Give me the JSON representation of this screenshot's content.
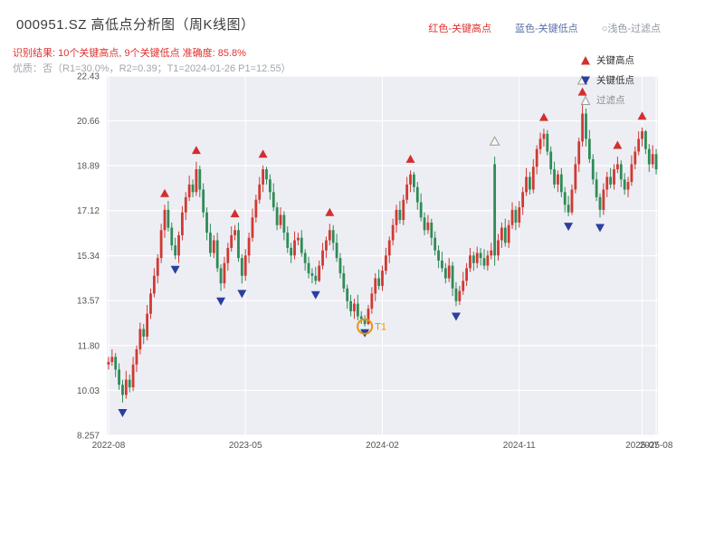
{
  "header": {
    "title": "000951.SZ 高低点分析图（周K线图）",
    "recognition_result": "识别结果: 10个关键高点, 9个关键低点  准确度: 85.8%",
    "quality_note": "优质：否（R1=30.0%，R2=0.39；T1=2024-01-26 P1=12.55）",
    "legend": {
      "high": "红色-关键高点",
      "low": "蓝色-关键低点",
      "filter": "○浅色-过滤点"
    }
  },
  "chart_data": {
    "type": "candlestick",
    "symbol": "000951.SZ",
    "period": "周K线",
    "title": "000951.SZ 高低点分析图（周K线图）",
    "x_tick_labels": [
      "2022-08",
      "2023-05",
      "2024-02",
      "2024-11",
      "2025-07",
      "2025-08"
    ],
    "x_tick_weeks": [
      0,
      39,
      78,
      117,
      152,
      156
    ],
    "y_tick_labels": [
      "8.257",
      "10.03",
      "11.80",
      "13.57",
      "15.34",
      "17.12",
      "18.89",
      "20.66",
      "22.43"
    ],
    "y_ticks": [
      8.257,
      10.03,
      11.8,
      13.57,
      15.34,
      17.12,
      18.89,
      20.66,
      22.43
    ],
    "ylim": [
      8.257,
      22.43
    ],
    "grid": true,
    "legend_position": "upper-right",
    "colors": {
      "up": "#cf3a33",
      "down": "#2f8b57",
      "key_high": "#d32f2f",
      "key_low": "#2b3f9e",
      "filter": "#f8f8f0",
      "filter_edge": "#9a9a9a",
      "annotation": "#e8940a",
      "panel": "#edeef4",
      "grid": "#ffffff",
      "tick_text": "#555555"
    },
    "legend": [
      {
        "label": "关键高点",
        "marker": "red-up-triangle"
      },
      {
        "label": "关键低点",
        "marker": "blue-down-triangle"
      },
      {
        "label": "过滤点",
        "marker": "light-up-triangle"
      }
    ],
    "candles": [
      [
        11.05,
        11.35,
        10.85,
        11.15
      ],
      [
        11.15,
        11.65,
        11.0,
        11.35
      ],
      [
        11.35,
        11.5,
        10.55,
        10.85
      ],
      [
        10.85,
        11.1,
        10.05,
        10.25
      ],
      [
        10.25,
        10.45,
        9.55,
        9.85
      ],
      [
        9.85,
        10.8,
        9.7,
        10.45
      ],
      [
        10.45,
        10.65,
        9.95,
        10.15
      ],
      [
        10.15,
        11.35,
        10.0,
        11.05
      ],
      [
        11.05,
        11.8,
        10.75,
        11.65
      ],
      [
        11.65,
        12.7,
        11.45,
        12.45
      ],
      [
        12.45,
        12.65,
        11.85,
        12.15
      ],
      [
        12.15,
        13.4,
        12.0,
        13.05
      ],
      [
        13.05,
        14.05,
        12.85,
        13.85
      ],
      [
        13.85,
        14.85,
        13.7,
        14.55
      ],
      [
        14.55,
        15.4,
        14.25,
        15.25
      ],
      [
        15.25,
        16.6,
        15.05,
        16.35
      ],
      [
        16.35,
        17.35,
        16.05,
        17.15
      ],
      [
        17.15,
        17.5,
        16.3,
        16.45
      ],
      [
        16.45,
        16.65,
        15.55,
        15.75
      ],
      [
        15.75,
        16.05,
        15.2,
        15.35
      ],
      [
        15.35,
        16.3,
        15.05,
        16.15
      ],
      [
        16.15,
        17.3,
        15.95,
        17.05
      ],
      [
        17.05,
        17.85,
        16.75,
        17.65
      ],
      [
        17.65,
        18.5,
        17.5,
        18.15
      ],
      [
        18.15,
        18.35,
        17.65,
        17.85
      ],
      [
        17.85,
        19.05,
        17.7,
        18.75
      ],
      [
        18.75,
        18.9,
        17.65,
        17.95
      ],
      [
        17.95,
        18.2,
        16.85,
        17.05
      ],
      [
        17.05,
        17.25,
        15.95,
        16.25
      ],
      [
        16.25,
        16.6,
        15.3,
        15.45
      ],
      [
        15.45,
        16.15,
        15.25,
        15.95
      ],
      [
        15.95,
        16.25,
        14.7,
        14.85
      ],
      [
        14.85,
        15.0,
        13.95,
        14.25
      ],
      [
        14.25,
        15.3,
        14.05,
        15.05
      ],
      [
        15.05,
        15.85,
        14.75,
        15.65
      ],
      [
        15.65,
        16.5,
        15.5,
        16.15
      ],
      [
        16.15,
        16.55,
        15.95,
        16.35
      ],
      [
        16.35,
        16.65,
        15.1,
        15.25
      ],
      [
        15.25,
        15.4,
        14.25,
        14.55
      ],
      [
        14.55,
        15.6,
        14.35,
        15.35
      ],
      [
        15.35,
        16.25,
        15.05,
        16.05
      ],
      [
        16.05,
        17.2,
        15.9,
        16.85
      ],
      [
        16.85,
        17.75,
        16.65,
        17.55
      ],
      [
        17.55,
        18.45,
        17.4,
        18.15
      ],
      [
        18.15,
        18.9,
        17.85,
        18.75
      ],
      [
        18.75,
        18.85,
        18.15,
        18.35
      ],
      [
        18.35,
        18.55,
        17.55,
        17.85
      ],
      [
        17.85,
        18.2,
        17.1,
        17.25
      ],
      [
        17.25,
        17.45,
        16.35,
        16.55
      ],
      [
        16.55,
        17.25,
        16.4,
        16.95
      ],
      [
        16.95,
        17.1,
        15.95,
        16.25
      ],
      [
        16.25,
        16.5,
        15.45,
        15.65
      ],
      [
        15.65,
        15.85,
        15.05,
        15.35
      ],
      [
        15.35,
        16.3,
        15.2,
        15.95
      ],
      [
        15.95,
        16.25,
        15.75,
        16.05
      ],
      [
        16.05,
        16.35,
        15.3,
        15.45
      ],
      [
        15.45,
        15.6,
        14.75,
        15.05
      ],
      [
        15.05,
        15.3,
        14.45,
        14.65
      ],
      [
        14.65,
        14.85,
        14.25,
        14.55
      ],
      [
        14.55,
        14.9,
        14.2,
        14.35
      ],
      [
        14.35,
        15.15,
        14.3,
        14.95
      ],
      [
        14.95,
        15.85,
        14.8,
        15.55
      ],
      [
        15.55,
        16.1,
        15.25,
        15.95
      ],
      [
        15.95,
        16.6,
        15.75,
        16.35
      ],
      [
        16.35,
        16.55,
        15.55,
        15.85
      ],
      [
        15.85,
        16.2,
        15.1,
        15.25
      ],
      [
        15.25,
        15.45,
        14.45,
        14.65
      ],
      [
        14.65,
        14.95,
        13.9,
        14.05
      ],
      [
        14.05,
        14.2,
        13.25,
        13.55
      ],
      [
        13.55,
        13.8,
        12.95,
        13.15
      ],
      [
        13.15,
        13.65,
        12.85,
        13.45
      ],
      [
        13.45,
        13.8,
        12.8,
        12.95
      ],
      [
        12.95,
        13.15,
        12.65,
        12.85
      ],
      [
        12.85,
        13.0,
        12.55,
        12.65
      ],
      [
        12.65,
        13.4,
        12.6,
        13.25
      ],
      [
        13.25,
        14.1,
        13.05,
        13.85
      ],
      [
        13.85,
        14.65,
        13.55,
        14.45
      ],
      [
        14.45,
        14.8,
        14.0,
        14.15
      ],
      [
        14.15,
        14.95,
        13.95,
        14.75
      ],
      [
        14.75,
        15.65,
        14.6,
        15.35
      ],
      [
        15.35,
        16.1,
        15.05,
        15.95
      ],
      [
        15.95,
        16.8,
        15.75,
        16.55
      ],
      [
        16.55,
        17.35,
        16.25,
        17.15
      ],
      [
        17.15,
        17.5,
        16.6,
        16.75
      ],
      [
        16.75,
        17.75,
        16.55,
        17.55
      ],
      [
        17.55,
        18.45,
        17.4,
        18.15
      ],
      [
        18.15,
        18.7,
        17.85,
        18.55
      ],
      [
        18.55,
        18.65,
        17.85,
        18.05
      ],
      [
        18.05,
        18.25,
        17.15,
        17.45
      ],
      [
        17.45,
        17.8,
        16.7,
        16.85
      ],
      [
        16.85,
        17.05,
        16.15,
        16.35
      ],
      [
        16.35,
        16.95,
        16.2,
        16.65
      ],
      [
        16.65,
        16.8,
        15.75,
        16.05
      ],
      [
        16.05,
        16.3,
        15.35,
        15.55
      ],
      [
        15.55,
        15.75,
        14.85,
        15.15
      ],
      [
        15.15,
        15.5,
        14.7,
        14.85
      ],
      [
        14.85,
        15.05,
        14.25,
        14.45
      ],
      [
        14.45,
        15.25,
        14.3,
        14.95
      ],
      [
        14.95,
        15.1,
        13.75,
        14.05
      ],
      [
        14.05,
        14.3,
        13.35,
        13.55
      ],
      [
        13.55,
        14.15,
        13.4,
        13.95
      ],
      [
        13.95,
        14.7,
        13.8,
        14.35
      ],
      [
        14.35,
        15.05,
        14.15,
        14.85
      ],
      [
        14.85,
        15.65,
        14.7,
        15.35
      ],
      [
        15.35,
        15.5,
        14.75,
        15.05
      ],
      [
        15.05,
        15.7,
        14.85,
        15.45
      ],
      [
        15.45,
        15.65,
        14.95,
        15.25
      ],
      [
        15.25,
        15.6,
        14.8,
        14.95
      ],
      [
        14.95,
        15.55,
        14.75,
        15.35
      ],
      [
        15.35,
        15.85,
        15.2,
        15.55
      ],
      [
        18.95,
        19.25,
        14.95,
        15.35
      ],
      [
        15.35,
        16.2,
        15.15,
        15.95
      ],
      [
        15.95,
        16.65,
        15.65,
        16.45
      ],
      [
        16.45,
        16.8,
        15.7,
        15.85
      ],
      [
        15.85,
        16.75,
        15.65,
        16.55
      ],
      [
        16.55,
        17.45,
        16.4,
        17.15
      ],
      [
        17.15,
        17.3,
        16.35,
        16.65
      ],
      [
        16.65,
        17.5,
        16.45,
        17.25
      ],
      [
        17.25,
        18.05,
        16.95,
        17.85
      ],
      [
        17.85,
        18.8,
        17.7,
        18.45
      ],
      [
        18.45,
        18.65,
        17.75,
        17.95
      ],
      [
        17.95,
        19.15,
        17.8,
        18.85
      ],
      [
        18.85,
        19.7,
        18.55,
        19.55
      ],
      [
        19.55,
        20.2,
        19.35,
        19.95
      ],
      [
        19.95,
        20.35,
        19.65,
        20.15
      ],
      [
        20.15,
        20.3,
        19.3,
        19.45
      ],
      [
        19.45,
        19.65,
        18.55,
        18.75
      ],
      [
        18.75,
        19.05,
        18.0,
        18.15
      ],
      [
        18.15,
        18.7,
        17.85,
        18.55
      ],
      [
        18.55,
        18.8,
        17.65,
        17.85
      ],
      [
        17.85,
        18.05,
        17.05,
        17.35
      ],
      [
        17.35,
        17.7,
        16.9,
        17.05
      ],
      [
        17.05,
        18.15,
        16.95,
        17.95
      ],
      [
        17.95,
        19.25,
        17.8,
        18.95
      ],
      [
        18.95,
        20.0,
        18.65,
        19.85
      ],
      [
        19.85,
        21.35,
        19.65,
        20.95
      ],
      [
        20.95,
        21.15,
        19.65,
        19.95
      ],
      [
        19.95,
        20.3,
        19.0,
        19.15
      ],
      [
        19.15,
        19.35,
        18.15,
        18.35
      ],
      [
        18.35,
        18.65,
        17.5,
        17.65
      ],
      [
        17.65,
        17.8,
        16.85,
        17.15
      ],
      [
        17.15,
        18.2,
        16.95,
        17.95
      ],
      [
        17.95,
        18.65,
        17.65,
        18.45
      ],
      [
        18.45,
        18.8,
        18.0,
        18.15
      ],
      [
        18.15,
        18.95,
        17.95,
        18.75
      ],
      [
        18.75,
        19.25,
        18.6,
        18.95
      ],
      [
        18.95,
        19.1,
        18.05,
        18.35
      ],
      [
        18.35,
        18.6,
        17.75,
        17.95
      ],
      [
        17.95,
        18.45,
        17.65,
        18.25
      ],
      [
        18.25,
        19.3,
        18.1,
        18.95
      ],
      [
        18.95,
        19.65,
        18.75,
        19.45
      ],
      [
        19.45,
        20.25,
        19.3,
        19.95
      ],
      [
        19.95,
        20.4,
        19.65,
        20.25
      ],
      [
        20.25,
        20.3,
        19.35,
        19.55
      ],
      [
        19.55,
        19.75,
        18.65,
        18.95
      ],
      [
        18.95,
        19.7,
        18.8,
        19.35
      ],
      [
        19.35,
        19.55,
        18.55,
        18.75
      ]
    ],
    "key_highs": [
      {
        "week": 16,
        "price": 17.8
      },
      {
        "week": 25,
        "price": 19.5
      },
      {
        "week": 36,
        "price": 17.0
      },
      {
        "week": 44,
        "price": 19.35
      },
      {
        "week": 63,
        "price": 17.05
      },
      {
        "week": 86,
        "price": 19.15
      },
      {
        "week": 124,
        "price": 20.8
      },
      {
        "week": 135,
        "price": 21.8
      },
      {
        "week": 145,
        "price": 19.7
      },
      {
        "week": 152,
        "price": 20.85
      }
    ],
    "key_lows": [
      {
        "week": 4,
        "price": 9.15
      },
      {
        "week": 19,
        "price": 14.8
      },
      {
        "week": 32,
        "price": 13.55
      },
      {
        "week": 38,
        "price": 13.85
      },
      {
        "week": 59,
        "price": 13.8
      },
      {
        "week": 73,
        "price": 12.3
      },
      {
        "week": 99,
        "price": 12.95
      },
      {
        "week": 131,
        "price": 16.5
      },
      {
        "week": 140,
        "price": 16.45
      }
    ],
    "filter_points": [
      {
        "week": 110,
        "price": 19.85
      },
      {
        "week": 135,
        "price": 22.25
      }
    ],
    "annotation_t1": {
      "week": 73,
      "price": 12.55,
      "label": "T1"
    }
  }
}
